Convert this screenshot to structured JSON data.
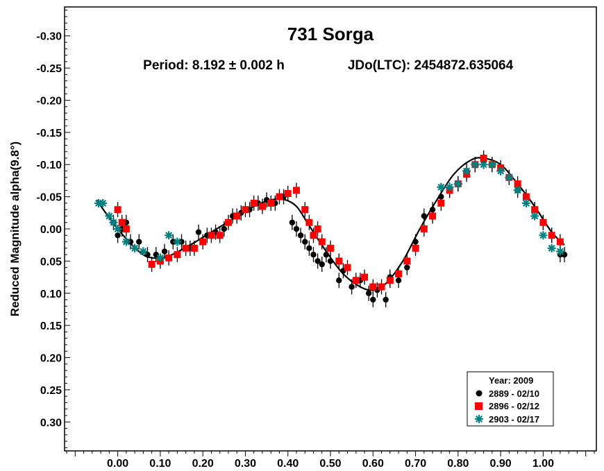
{
  "chart_data": {
    "type": "scatter",
    "title": "731 Sorga",
    "subtitle_period": "Period: 8.192 ± 0.002 h",
    "subtitle_epoch": "JDo(LTC): 2454872.635064",
    "ylabel": "Reduced Magnitude alpha(9.8°)",
    "xlabel": "",
    "xlim": [
      -0.125,
      1.125
    ],
    "ylim": [
      -0.345,
      0.345
    ],
    "y_inverted": true,
    "x_ticks": [
      0.0,
      0.1,
      0.2,
      0.3,
      0.4,
      0.5,
      0.6,
      0.7,
      0.8,
      0.9,
      1.0
    ],
    "x_tick_labels": [
      "0.00",
      "0.10",
      "0.20",
      "0.30",
      "0.40",
      "0.50",
      "0.60",
      "0.70",
      "0.80",
      "0.90",
      "1.00"
    ],
    "y_ticks": [
      -0.3,
      -0.25,
      -0.2,
      -0.15,
      -0.1,
      -0.05,
      0.0,
      0.05,
      0.1,
      0.15,
      0.2,
      0.25,
      0.3
    ],
    "y_tick_labels": [
      "-0.30",
      "-0.25",
      "-0.20",
      "-0.15",
      "-0.10",
      "-0.05",
      "0.00",
      "0.05",
      "0.10",
      "0.15",
      "0.20",
      "0.25",
      "0.30"
    ],
    "grid": false,
    "legend": {
      "placement": "bottom-right",
      "title": "Year: 2009",
      "entries": [
        {
          "label": "2889 - 02/10",
          "marker": "circle",
          "color": "#000000"
        },
        {
          "label": "2896 - 02/12",
          "marker": "square",
          "color": "#ff0000"
        },
        {
          "label": "2903 - 02/17",
          "marker": "asterisk",
          "color": "#008080"
        }
      ]
    },
    "fit_curve": {
      "color": "#000000",
      "x": [
        -0.05,
        0.0,
        0.05,
        0.08,
        0.12,
        0.17,
        0.22,
        0.27,
        0.32,
        0.36,
        0.39,
        0.42,
        0.45,
        0.49,
        0.53,
        0.57,
        0.6,
        0.63,
        0.67,
        0.71,
        0.75,
        0.79,
        0.83,
        0.86,
        0.9,
        0.94,
        0.98,
        1.02,
        1.05
      ],
      "y": [
        -0.045,
        0.0,
        0.035,
        0.045,
        0.042,
        0.025,
        0.005,
        -0.015,
        -0.035,
        -0.045,
        -0.046,
        -0.035,
        -0.005,
        0.035,
        0.07,
        0.09,
        0.095,
        0.085,
        0.05,
        0.0,
        -0.045,
        -0.085,
        -0.107,
        -0.11,
        -0.1,
        -0.07,
        -0.035,
        0.005,
        0.025
      ]
    },
    "series": [
      {
        "name": "2889 - 02/10",
        "marker": "circle",
        "color": "#000000",
        "x": [
          -0.01,
          0.0,
          0.01,
          0.02,
          0.03,
          0.05,
          0.07,
          0.09,
          0.11,
          0.13,
          0.15,
          0.17,
          0.19,
          0.21,
          0.23,
          0.25,
          0.27,
          0.29,
          0.31,
          0.33,
          0.35,
          0.37,
          0.39,
          0.41,
          0.42,
          0.43,
          0.44,
          0.45,
          0.46,
          0.47,
          0.48,
          0.49,
          0.5,
          0.52,
          0.53,
          0.55,
          0.57,
          0.59,
          0.6,
          0.61,
          0.63,
          0.64,
          0.66,
          0.68,
          0.7,
          0.72,
          0.74,
          0.76,
          0.78,
          0.8,
          0.82,
          0.84,
          0.86,
          0.88,
          0.92,
          0.94,
          0.98,
          1.0,
          1.02,
          1.04,
          1.05
        ],
        "y": [
          -0.01,
          0.01,
          0.0,
          -0.01,
          0.02,
          0.02,
          0.04,
          0.04,
          0.035,
          0.02,
          0.02,
          0.03,
          0.005,
          0.01,
          0.005,
          0.0,
          -0.02,
          -0.025,
          -0.03,
          -0.04,
          -0.045,
          -0.04,
          -0.05,
          -0.01,
          -0.0,
          0.01,
          0.02,
          0.03,
          0.04,
          0.05,
          0.055,
          0.04,
          0.05,
          0.08,
          0.065,
          0.09,
          0.08,
          0.1,
          0.11,
          0.095,
          0.11,
          0.075,
          0.08,
          0.06,
          0.02,
          -0.02,
          -0.03,
          -0.05,
          -0.06,
          -0.07,
          -0.09,
          -0.1,
          -0.105,
          -0.1,
          -0.08,
          -0.06,
          -0.03,
          -0.01,
          0.01,
          0.04,
          0.04
        ]
      },
      {
        "name": "2896 - 02/12",
        "marker": "square",
        "color": "#ff0000",
        "x": [
          0.0,
          0.01,
          0.02,
          0.08,
          0.1,
          0.12,
          0.14,
          0.16,
          0.18,
          0.2,
          0.22,
          0.24,
          0.26,
          0.28,
          0.3,
          0.32,
          0.34,
          0.36,
          0.38,
          0.4,
          0.42,
          0.44,
          0.45,
          0.46,
          0.47,
          0.48,
          0.5,
          0.52,
          0.54,
          0.56,
          0.58,
          0.6,
          0.62,
          0.64,
          0.66,
          0.68,
          0.7,
          0.72,
          0.74,
          0.76,
          0.78,
          0.8,
          0.82,
          0.84,
          0.86,
          0.88,
          0.9,
          0.92,
          0.94,
          0.96,
          0.98,
          1.0,
          1.02,
          1.04
        ],
        "y": [
          -0.03,
          -0.01,
          0.0,
          0.055,
          0.05,
          0.045,
          0.04,
          0.03,
          0.03,
          0.02,
          0.01,
          0.01,
          -0.01,
          -0.02,
          -0.03,
          -0.04,
          -0.035,
          -0.04,
          -0.05,
          -0.055,
          -0.06,
          -0.03,
          -0.01,
          0.01,
          0.0,
          0.02,
          0.03,
          0.05,
          0.06,
          0.08,
          0.075,
          0.09,
          0.09,
          0.08,
          0.07,
          0.05,
          0.03,
          0.0,
          -0.02,
          -0.04,
          -0.06,
          -0.07,
          -0.085,
          -0.1,
          -0.11,
          -0.1,
          -0.095,
          -0.08,
          -0.07,
          -0.05,
          -0.03,
          -0.01,
          0.01,
          0.02
        ]
      },
      {
        "name": "2903 - 02/17",
        "marker": "asterisk",
        "color": "#008080",
        "x": [
          -0.045,
          -0.035,
          -0.02,
          -0.01,
          0.0,
          0.02,
          0.04,
          0.06,
          0.1,
          0.12,
          0.14,
          0.76,
          0.78,
          0.8,
          0.82,
          0.84,
          0.86,
          0.88,
          0.9,
          0.92,
          0.94,
          0.96,
          0.98,
          1.0,
          1.02,
          1.04
        ],
        "y": [
          -0.04,
          -0.04,
          -0.02,
          -0.01,
          0.0,
          0.02,
          0.03,
          0.035,
          0.045,
          0.01,
          0.02,
          -0.065,
          -0.065,
          -0.07,
          -0.09,
          -0.1,
          -0.1,
          -0.1,
          -0.09,
          -0.08,
          -0.06,
          -0.04,
          -0.02,
          0.01,
          0.03,
          0.035
        ]
      }
    ]
  }
}
